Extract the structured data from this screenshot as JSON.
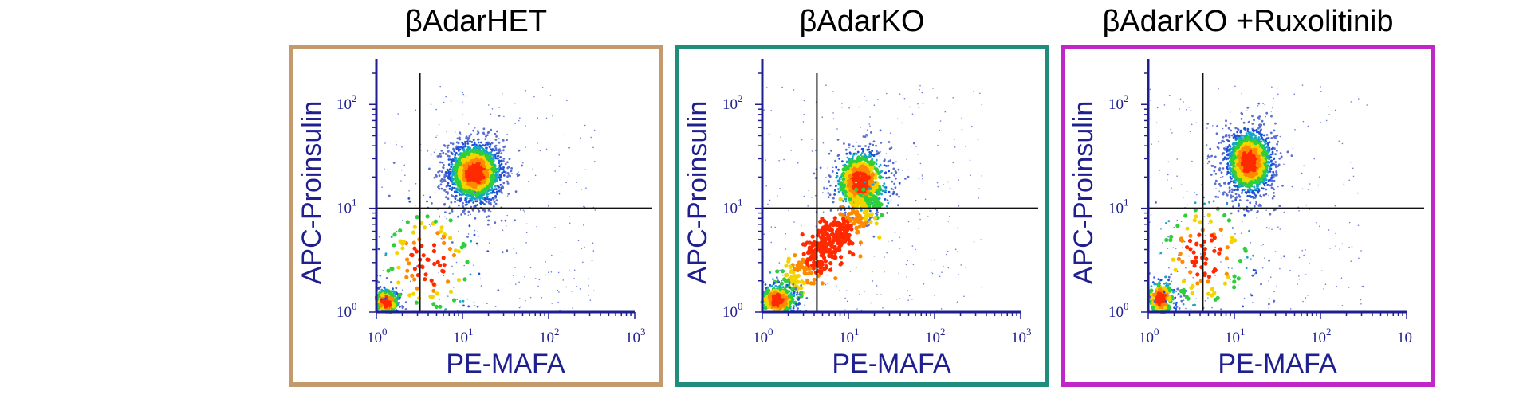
{
  "chart_data": [
    {
      "type": "scatter",
      "subtype": "flow-cytometry-density-dot-plot",
      "title": "βAdarHET",
      "frame_color": "#c49a6c",
      "xlabel": "PE-MAFA",
      "ylabel": "APC-Proinsulin",
      "xscale": "log",
      "yscale": "log",
      "xlim": [
        1,
        1000
      ],
      "ylim": [
        1,
        200
      ],
      "x_ticks": [
        {
          "base": "10",
          "exp": "0"
        },
        {
          "base": "10",
          "exp": "1"
        },
        {
          "base": "10",
          "exp": "2"
        },
        {
          "base": "10",
          "exp": "3"
        }
      ],
      "y_ticks": [
        {
          "base": "10",
          "exp": "0"
        },
        {
          "base": "10",
          "exp": "1"
        },
        {
          "base": "10",
          "exp": "2"
        }
      ],
      "quadrant_gate": {
        "x": 3.2,
        "y": 10
      },
      "populations": [
        {
          "x": 14,
          "y": 22,
          "sx": 0.17,
          "sy": 0.16,
          "n": 1500
        },
        {
          "x": 1.3,
          "y": 1.25,
          "sx": 0.09,
          "sy": 0.08,
          "n": 260
        },
        {
          "x": 4,
          "y": 3,
          "sx": 0.35,
          "sy": 0.35,
          "n": 160
        }
      ]
    },
    {
      "type": "scatter",
      "subtype": "flow-cytometry-density-dot-plot",
      "title": "βAdarKO",
      "frame_color": "#1f8c7c",
      "xlabel": "PE-MAFA",
      "ylabel": "APC-Proinsulin",
      "xscale": "log",
      "yscale": "log",
      "xlim": [
        1,
        1000
      ],
      "ylim": [
        1,
        200
      ],
      "x_ticks": [
        {
          "base": "10",
          "exp": "0"
        },
        {
          "base": "10",
          "exp": "1"
        },
        {
          "base": "10",
          "exp": "2"
        },
        {
          "base": "10",
          "exp": "3"
        }
      ],
      "y_ticks": [
        {
          "base": "10",
          "exp": "0"
        },
        {
          "base": "10",
          "exp": "1"
        },
        {
          "base": "10",
          "exp": "2"
        }
      ],
      "quadrant_gate": {
        "x": 4.3,
        "y": 10
      },
      "populations": [
        {
          "x": 14,
          "y": 18,
          "sx": 0.17,
          "sy": 0.17,
          "n": 650
        },
        {
          "x": 6,
          "y": 4.5,
          "sx": 0.22,
          "sy": 0.2,
          "n": 500,
          "diag": true
        },
        {
          "x": 1.5,
          "y": 1.3,
          "sx": 0.13,
          "sy": 0.09,
          "n": 320
        }
      ]
    },
    {
      "type": "scatter",
      "subtype": "flow-cytometry-density-dot-plot",
      "title": "βAdarKO +Ruxolitinib",
      "frame_color": "#c026c8",
      "xlabel": "PE-MAFA",
      "ylabel": "APC-Proinsulin",
      "xscale": "log",
      "yscale": "log",
      "xlim": [
        1,
        1000
      ],
      "ylim": [
        1,
        200
      ],
      "x_ticks": [
        {
          "base": "10",
          "exp": "0"
        },
        {
          "base": "10",
          "exp": "1"
        },
        {
          "base": "10",
          "exp": "2"
        },
        {
          "base": "10",
          "exp": ""
        }
      ],
      "y_ticks": [
        {
          "base": "10",
          "exp": "0"
        },
        {
          "base": "10",
          "exp": "1"
        },
        {
          "base": "10",
          "exp": "2"
        }
      ],
      "quadrant_gate": {
        "x": 4.3,
        "y": 10
      },
      "populations": [
        {
          "x": 15,
          "y": 28,
          "sx": 0.15,
          "sy": 0.17,
          "n": 1300
        },
        {
          "x": 1.4,
          "y": 1.35,
          "sx": 0.1,
          "sy": 0.1,
          "n": 220
        },
        {
          "x": 4.5,
          "y": 3.5,
          "sx": 0.35,
          "sy": 0.35,
          "n": 160
        }
      ]
    }
  ]
}
